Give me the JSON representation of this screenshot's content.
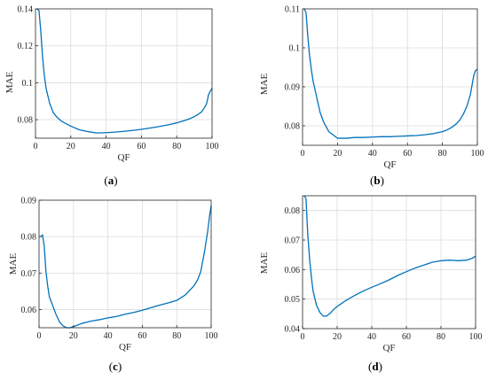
{
  "chart_data": [
    {
      "type": "line",
      "caption": "a",
      "xlabel": "QF",
      "ylabel": "MAE",
      "xlim": [
        0,
        100
      ],
      "ylim": [
        0.07,
        0.14
      ],
      "xticks": [
        "0",
        "20",
        "40",
        "60",
        "80",
        "100"
      ],
      "yticks": [
        "0.08",
        "0.1",
        "0.12",
        "0.14"
      ],
      "ytick_values": [
        0.08,
        0.1,
        0.12,
        0.14
      ],
      "grid": true,
      "color": "#0072BD",
      "x": [
        1,
        2,
        3,
        4,
        5,
        6,
        8,
        10,
        12,
        15,
        18,
        20,
        25,
        30,
        35,
        40,
        45,
        50,
        55,
        60,
        65,
        70,
        75,
        80,
        85,
        88,
        90,
        92,
        94,
        95,
        96,
        97,
        98,
        99,
        100
      ],
      "y": [
        0.14,
        0.139,
        0.128,
        0.114,
        0.104,
        0.097,
        0.089,
        0.084,
        0.0815,
        0.079,
        0.0775,
        0.0765,
        0.0745,
        0.0735,
        0.0728,
        0.073,
        0.0733,
        0.0737,
        0.0742,
        0.0748,
        0.0755,
        0.0763,
        0.0772,
        0.0783,
        0.0797,
        0.0808,
        0.0817,
        0.0828,
        0.0842,
        0.0855,
        0.087,
        0.089,
        0.0935,
        0.0955,
        0.097
      ]
    },
    {
      "type": "line",
      "caption": "b",
      "xlabel": "QF",
      "ylabel": "MAE",
      "xlim": [
        0,
        100
      ],
      "ylim": [
        0.075,
        0.11
      ],
      "xticks": [
        "0",
        "20",
        "40",
        "60",
        "80",
        "100"
      ],
      "yticks": [
        "0.08",
        "0.09",
        "0.1",
        "0.11"
      ],
      "ytick_values": [
        0.08,
        0.09,
        0.1,
        0.11
      ],
      "grid": true,
      "color": "#0072BD",
      "x": [
        1,
        2,
        3,
        4,
        5,
        6,
        8,
        10,
        12,
        15,
        18,
        20,
        25,
        30,
        35,
        40,
        45,
        50,
        55,
        60,
        65,
        70,
        75,
        78,
        80,
        82,
        85,
        88,
        90,
        92,
        94,
        96,
        97,
        98,
        99,
        100
      ],
      "y": [
        0.11,
        0.109,
        0.103,
        0.098,
        0.0945,
        0.0915,
        0.0875,
        0.0835,
        0.081,
        0.0785,
        0.0775,
        0.0768,
        0.0768,
        0.077,
        0.077,
        0.0771,
        0.0772,
        0.0772,
        0.0773,
        0.0774,
        0.0775,
        0.0777,
        0.078,
        0.0783,
        0.0785,
        0.0788,
        0.0795,
        0.0805,
        0.0815,
        0.083,
        0.085,
        0.088,
        0.0905,
        0.093,
        0.0942,
        0.0945
      ]
    },
    {
      "type": "line",
      "caption": "c",
      "xlabel": "QF",
      "ylabel": "MAE",
      "xlim": [
        0,
        100
      ],
      "ylim": [
        0.055,
        0.09
      ],
      "xticks": [
        "0",
        "20",
        "40",
        "60",
        "80",
        "100"
      ],
      "yticks": [
        "0.06",
        "0.07",
        "0.08",
        "0.09"
      ],
      "ytick_values": [
        0.06,
        0.07,
        0.08,
        0.09
      ],
      "grid": true,
      "color": "#0072BD",
      "x": [
        1,
        2,
        3,
        4,
        5,
        6,
        8,
        10,
        12,
        14,
        16,
        18,
        20,
        25,
        30,
        35,
        40,
        45,
        50,
        55,
        60,
        65,
        70,
        75,
        80,
        85,
        88,
        90,
        92,
        94,
        96,
        97,
        98,
        99,
        100
      ],
      "y": [
        0.08,
        0.0805,
        0.0775,
        0.0705,
        0.0665,
        0.0635,
        0.061,
        0.0585,
        0.0565,
        0.0555,
        0.055,
        0.055,
        0.0553,
        0.0562,
        0.0568,
        0.0572,
        0.0577,
        0.0581,
        0.0587,
        0.0592,
        0.0598,
        0.0605,
        0.0612,
        0.0618,
        0.0625,
        0.064,
        0.0655,
        0.0665,
        0.068,
        0.0705,
        0.0755,
        0.0785,
        0.0815,
        0.0855,
        0.0885
      ]
    },
    {
      "type": "line",
      "caption": "d",
      "xlabel": "QF",
      "ylabel": "MAE",
      "xlim": [
        0,
        100
      ],
      "ylim": [
        0.04,
        0.085
      ],
      "xticks": [
        "0",
        "20",
        "40",
        "60",
        "80",
        "100"
      ],
      "yticks": [
        "0.04",
        "0.05",
        "0.06",
        "0.07",
        "0.08"
      ],
      "ytick_values": [
        0.04,
        0.05,
        0.06,
        0.07,
        0.08
      ],
      "grid": true,
      "color": "#0072BD",
      "x": [
        1,
        2,
        3,
        4,
        5,
        6,
        8,
        10,
        12,
        14,
        16,
        18,
        20,
        25,
        30,
        35,
        40,
        45,
        50,
        55,
        60,
        65,
        70,
        75,
        80,
        85,
        90,
        95,
        98,
        100
      ],
      "y": [
        0.085,
        0.084,
        0.072,
        0.064,
        0.058,
        0.053,
        0.048,
        0.0455,
        0.0442,
        0.0443,
        0.0452,
        0.0465,
        0.0475,
        0.0495,
        0.0512,
        0.0527,
        0.054,
        0.0552,
        0.0565,
        0.058,
        0.0593,
        0.0605,
        0.0615,
        0.0625,
        0.063,
        0.0632,
        0.063,
        0.0632,
        0.0638,
        0.0645
      ]
    }
  ]
}
